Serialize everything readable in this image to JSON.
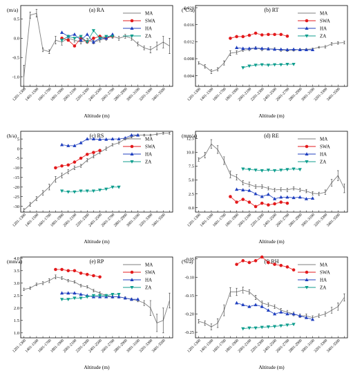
{
  "x_categories": [
    "1201-1300",
    "1301-1400",
    "1401-1500",
    "1501-1600",
    "1601-1700",
    "1701-1800",
    "1801-1900",
    "1901-2000",
    "2001-2100",
    "2101-2200",
    "2201-2300",
    "2301-2400",
    "2401-2500",
    "2501-2600",
    "2601-2700",
    "2701-2800",
    "2801-2900",
    "2901-3000",
    "3001-3100",
    "3101-3200",
    "3201-3300",
    "3301-3400",
    "3401-3500",
    "3501-3600"
  ],
  "x_tick_labels": [
    "1201-1300",
    "1401-1500",
    "1601-1700",
    "1801-1900",
    "2001-2100",
    "2201-2300",
    "2401-2500",
    "2601-2700",
    "2801-2900",
    "3001-3100",
    "3201-3300",
    "3401-3500"
  ],
  "colors": {
    "MA": "#7f7f7f",
    "SWA": "#e31a1c",
    "HA": "#1f3fbf",
    "ZA": "#0f9e8e"
  },
  "chart_data": [
    {
      "type": "line",
      "title": "(a) RA",
      "xlabel": "Altitude (m)",
      "ylabel": "(m/a)",
      "ylim": [
        -1.25,
        0.85
      ],
      "yticks": [
        -1.0,
        -0.5,
        0.0,
        0.5
      ],
      "ytick_labels": [
        "-1.0",
        "-0.5",
        "0.0",
        "0.5"
      ],
      "legend": "top-right",
      "series": [
        {
          "name": "MA",
          "start": 0,
          "values": [
            -1.0,
            0.6,
            0.65,
            -0.3,
            -0.35,
            -0.05,
            -0.1,
            0.0,
            -0.05,
            -0.1,
            -0.05,
            -0.1,
            -0.05,
            0.0,
            0.05,
            0.0,
            0.05,
            0.0,
            -0.15,
            -0.25,
            -0.3,
            -0.2,
            -0.1,
            -0.2
          ],
          "errors": [
            0.3,
            0.08,
            0.1,
            0.05,
            0.05,
            0.1,
            0.08,
            0.06,
            0.05,
            0.05,
            0.05,
            0.05,
            0.05,
            0.05,
            0.05,
            0.05,
            0.05,
            0.05,
            0.05,
            0.05,
            0.08,
            0.1,
            0.15,
            0.2
          ]
        },
        {
          "name": "SWA",
          "start": 6,
          "values": [
            0.0,
            -0.05,
            -0.2,
            0.0,
            -0.1,
            0.0,
            0.05,
            0.0,
            0.05
          ]
        },
        {
          "name": "HA",
          "start": 6,
          "values": [
            0.15,
            0.05,
            0.1,
            -0.05,
            0.1,
            -0.1,
            0.0,
            0.0,
            0.1
          ]
        },
        {
          "name": "ZA",
          "start": 6,
          "values": [
            -0.05,
            0.05,
            0.0,
            0.05,
            -0.1,
            0.2,
            0.0,
            0.05,
            0.05
          ]
        }
      ]
    },
    {
      "type": "line",
      "title": "(b) RT",
      "xlabel": "Altitude (m)",
      "ylabel": "(℃/a)",
      "ylim": [
        0.0015,
        0.0205
      ],
      "yticks": [
        0.004,
        0.008,
        0.012,
        0.016,
        0.02
      ],
      "ytick_labels": [
        "0.004",
        "0.008",
        "0.012",
        "0.016",
        "0.020"
      ],
      "legend": "top-right",
      "series": [
        {
          "name": "MA",
          "start": 0,
          "values": [
            0.007,
            0.0062,
            0.005,
            0.0055,
            0.007,
            0.0093,
            0.0095,
            0.01,
            0.0102,
            0.0105,
            0.0102,
            0.0103,
            0.0103,
            0.01,
            0.01,
            0.01,
            0.0102,
            0.0102,
            0.0103,
            0.0107,
            0.0108,
            0.0115,
            0.0117,
            0.0118
          ],
          "errors": [
            0.0003,
            0.0004,
            0.0005,
            0.0004,
            0.0005,
            0.0006,
            0.0004,
            0.0003,
            0.0003,
            0.0003,
            0.0003,
            0.0003,
            0.0003,
            0.0003,
            0.0003,
            0.0002,
            0.0002,
            0.0002,
            0.0002,
            0.0002,
            0.0003,
            0.0003,
            0.0003,
            0.0003
          ]
        },
        {
          "name": "SWA",
          "start": 5,
          "values": [
            0.0128,
            0.0132,
            0.0132,
            0.0135,
            0.014,
            0.0136,
            0.0137,
            0.0137,
            0.0137,
            0.0133
          ]
        },
        {
          "name": "HA",
          "start": 6,
          "values": [
            0.0106,
            0.0104,
            0.0104,
            0.0105,
            0.0104,
            0.0103,
            0.0102,
            0.0102,
            0.0101,
            0.0102,
            0.0101,
            0.0101,
            0.0101
          ]
        },
        {
          "name": "ZA",
          "start": 7,
          "values": [
            0.0059,
            0.0063,
            0.0065,
            0.0066,
            0.0065,
            0.0066,
            0.0066,
            0.0067,
            0.0067
          ]
        }
      ]
    },
    {
      "type": "line",
      "title": "(c) RS",
      "xlabel": "Altitude (m)",
      "ylabel": "(h/a)",
      "ylim": [
        -33,
        9
      ],
      "yticks": [
        -30,
        -25,
        -20,
        -15,
        -10,
        -5,
        0,
        5
      ],
      "ytick_labels": [
        "-30",
        "-25",
        "-20",
        "-15",
        "-10",
        "-5",
        "0",
        "5"
      ],
      "legend": "top-right",
      "series": [
        {
          "name": "MA",
          "start": 0,
          "values": [
            -32,
            -29,
            -26,
            -23,
            -20,
            -16,
            -14,
            -12,
            -10,
            -9,
            -6,
            -4,
            -2,
            0,
            2,
            3,
            5,
            6,
            7,
            7,
            7,
            7.5,
            8,
            8
          ],
          "errors": [
            0.8,
            1,
            1,
            1.2,
            1.5,
            1.5,
            1.2,
            1,
            1,
            0.8,
            0.8,
            0.8,
            0.8,
            0.8,
            0.6,
            0.6,
            0.5,
            0.5,
            0.5,
            0.5,
            0.5,
            0.5,
            0.5,
            0.5
          ]
        },
        {
          "name": "SWA",
          "start": 5,
          "values": [
            -10,
            -9,
            -8.5,
            -7,
            -5,
            -3,
            -2,
            -1
          ]
        },
        {
          "name": "HA",
          "start": 6,
          "values": [
            2,
            1.5,
            1.5,
            3,
            5,
            5,
            4.8,
            4.8,
            5,
            5,
            5.5,
            7,
            7
          ]
        },
        {
          "name": "ZA",
          "start": 6,
          "values": [
            -22,
            -22.5,
            -22.5,
            -22,
            -22,
            -22,
            -21.5,
            -21,
            -20,
            -20
          ]
        }
      ]
    },
    {
      "type": "line",
      "title": "(d) RE",
      "xlabel": "Altitude (m)",
      "ylabel": "(mm/a)",
      "ylim": [
        -0.8,
        13.8
      ],
      "yticks": [
        0.0,
        2.5,
        5.0,
        7.5,
        10.0,
        12.5
      ],
      "ytick_labels": [
        "0.0",
        "2.5",
        "5.0",
        "7.5",
        "10.0",
        "12.5"
      ],
      "legend": "top-right",
      "series": [
        {
          "name": "MA",
          "start": 0,
          "values": [
            8.7,
            9.5,
            11.5,
            10.5,
            8.5,
            6.0,
            5.5,
            4.5,
            4.2,
            3.8,
            3.8,
            3.5,
            3.2,
            3.3,
            3.2,
            3.5,
            3.2,
            3.0,
            2.6,
            2.5,
            2.8,
            4.5,
            5.8,
            3.5
          ],
          "errors": [
            0.3,
            0.5,
            0.8,
            0.7,
            0.7,
            0.6,
            0.5,
            0.4,
            0.4,
            0.3,
            0.3,
            0.3,
            0.3,
            0.3,
            0.3,
            0.3,
            0.3,
            0.3,
            0.3,
            0.3,
            0.4,
            0.6,
            0.9,
            0.8
          ]
        },
        {
          "name": "SWA",
          "start": 5,
          "values": [
            2.0,
            1.0,
            1.5,
            1.0,
            0.2,
            0.8,
            0.5,
            0.7,
            1.0,
            0.8
          ]
        },
        {
          "name": "HA",
          "start": 6,
          "values": [
            3.3,
            3.2,
            3.1,
            2.5,
            2.0,
            2.4,
            1.6,
            1.9,
            1.9,
            1.8,
            1.9,
            1.6,
            1.7
          ]
        },
        {
          "name": "ZA",
          "start": 7,
          "values": [
            7.0,
            6.9,
            6.8,
            6.7,
            6.8,
            6.7,
            6.8,
            6.9,
            7.0,
            6.9
          ]
        }
      ]
    },
    {
      "type": "line",
      "title": "(e) RP",
      "xlabel": "Altitude (m)",
      "ylabel": "(mm/a)",
      "ylim": [
        0.8,
        4.05
      ],
      "yticks": [
        1.0,
        1.5,
        2.0,
        2.5,
        3.0,
        3.5,
        4.0
      ],
      "ytick_labels": [
        "1.0",
        "1.5",
        "2.0",
        "2.5",
        "3.0",
        "3.5",
        "4.0"
      ],
      "legend": "top-right",
      "series": [
        {
          "name": "MA",
          "start": 0,
          "values": [
            2.75,
            2.8,
            2.95,
            3.0,
            3.1,
            3.25,
            3.2,
            3.1,
            3.05,
            2.9,
            2.85,
            2.7,
            2.6,
            2.5,
            2.45,
            2.45,
            2.4,
            2.35,
            2.3,
            2.2,
            2.0,
            1.4,
            1.5,
            2.3
          ],
          "errors": [
            0.05,
            0.05,
            0.05,
            0.06,
            0.08,
            0.08,
            0.06,
            0.05,
            0.05,
            0.05,
            0.05,
            0.05,
            0.05,
            0.05,
            0.05,
            0.05,
            0.05,
            0.05,
            0.05,
            0.1,
            0.3,
            0.35,
            0.5,
            0.3
          ]
        },
        {
          "name": "SWA",
          "start": 5,
          "values": [
            3.55,
            3.55,
            3.5,
            3.5,
            3.4,
            3.35,
            3.3,
            3.25
          ]
        },
        {
          "name": "HA",
          "start": 6,
          "values": [
            2.6,
            2.6,
            2.6,
            2.55,
            2.5,
            2.45,
            2.45,
            2.45,
            2.45,
            2.45,
            2.4,
            2.35,
            2.35
          ]
        },
        {
          "name": "ZA",
          "start": 6,
          "values": [
            2.35,
            2.35,
            2.4,
            2.4,
            2.45,
            2.5,
            2.5,
            2.5,
            2.55,
            2.55
          ]
        }
      ]
    },
    {
      "type": "line",
      "title": "(f) RH",
      "xlabel": "Altitude (m)",
      "ylabel": "(%/a)",
      "ylim": [
        -0.265,
        -0.045
      ],
      "yticks": [
        -0.25,
        -0.2,
        -0.15,
        -0.1,
        -0.05
      ],
      "ytick_labels": [
        "-0.25",
        "-0.20",
        "-0.15",
        "-0.10",
        "-0.05"
      ],
      "legend": "top-right",
      "series": [
        {
          "name": "MA",
          "start": 0,
          "values": [
            -0.22,
            -0.225,
            -0.235,
            -0.225,
            -0.19,
            -0.14,
            -0.14,
            -0.135,
            -0.14,
            -0.155,
            -0.17,
            -0.175,
            -0.18,
            -0.19,
            -0.195,
            -0.2,
            -0.205,
            -0.205,
            -0.21,
            -0.205,
            -0.2,
            -0.19,
            -0.18,
            -0.155
          ],
          "errors": [
            0.005,
            0.006,
            0.008,
            0.012,
            0.015,
            0.012,
            0.01,
            0.008,
            0.006,
            0.006,
            0.005,
            0.005,
            0.005,
            0.005,
            0.005,
            0.005,
            0.005,
            0.005,
            0.005,
            0.005,
            0.006,
            0.008,
            0.01,
            0.01
          ]
        },
        {
          "name": "SWA",
          "start": 6,
          "values": [
            -0.065,
            -0.055,
            -0.06,
            -0.055,
            -0.045,
            -0.06,
            -0.065,
            -0.068,
            -0.072,
            -0.08
          ]
        },
        {
          "name": "HA",
          "start": 6,
          "values": [
            -0.17,
            -0.175,
            -0.18,
            -0.175,
            -0.18,
            -0.19,
            -0.2,
            -0.195,
            -0.2,
            -0.2,
            -0.205,
            -0.21,
            -0.215
          ]
        },
        {
          "name": "ZA",
          "start": 7,
          "values": [
            -0.24,
            -0.238,
            -0.238,
            -0.236,
            -0.235,
            -0.234,
            -0.232,
            -0.23,
            -0.228
          ]
        }
      ]
    }
  ]
}
